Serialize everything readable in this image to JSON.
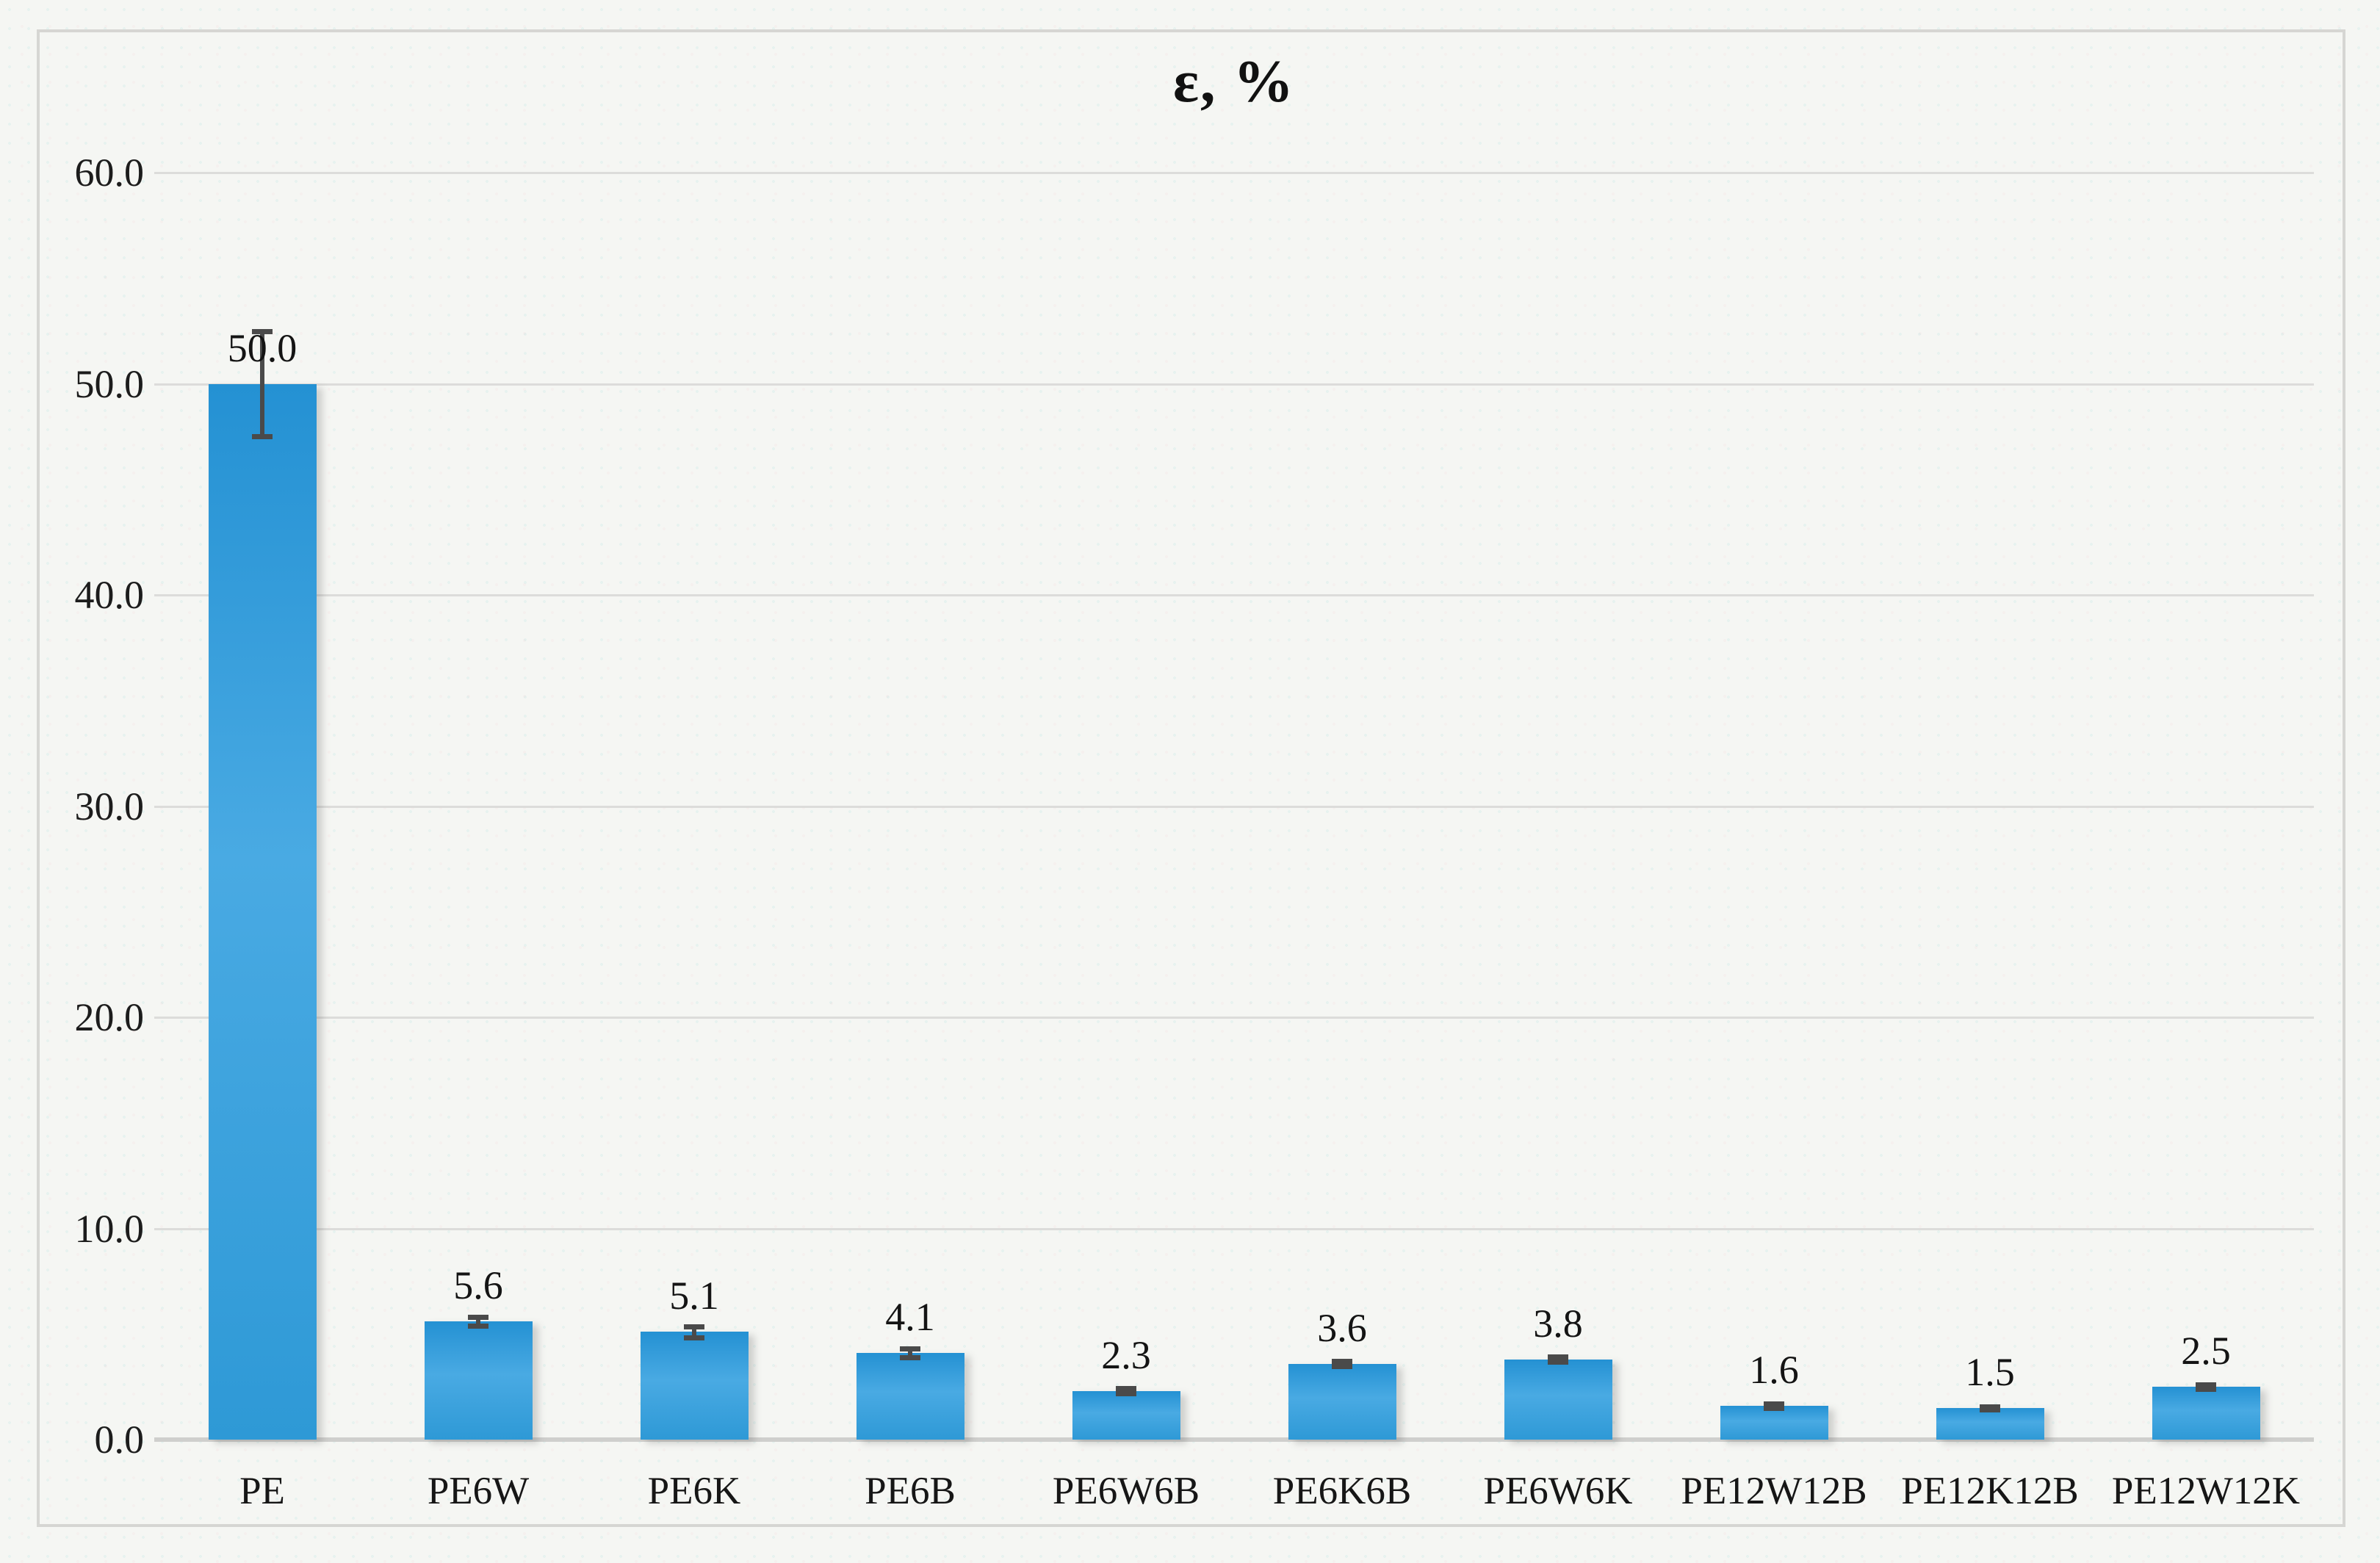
{
  "chart_data": {
    "type": "bar",
    "title": "ε, %",
    "xlabel": "",
    "ylabel": "",
    "categories": [
      "PE",
      "PE6W",
      "PE6K",
      "PE6B",
      "PE6W6B",
      "PE6K6B",
      "PE6W6K",
      "PE12W12B",
      "PE12K12B",
      "PE12W12K"
    ],
    "values": [
      50.0,
      5.6,
      5.1,
      4.1,
      2.3,
      3.6,
      3.8,
      1.6,
      1.5,
      2.5
    ],
    "value_labels": [
      "50.0",
      "5.6",
      "5.1",
      "4.1",
      "2.3",
      "3.6",
      "3.8",
      "1.6",
      "1.5",
      "2.5"
    ],
    "errors": [
      2.5,
      0.2,
      0.25,
      0.2,
      0.12,
      0.12,
      0.12,
      0.1,
      0.08,
      0.1
    ],
    "y_ticks": [
      {
        "value": 0,
        "label": "0.0"
      },
      {
        "value": 10,
        "label": "10.0"
      },
      {
        "value": 20,
        "label": "20.0"
      },
      {
        "value": 30,
        "label": "30.0"
      },
      {
        "value": 40,
        "label": "40.0"
      },
      {
        "value": 50,
        "label": "50.0"
      },
      {
        "value": 60,
        "label": "60.0"
      }
    ],
    "ylim": [
      0,
      60
    ],
    "grid": true,
    "legend": false,
    "colors": {
      "bar_top": "#2491d3",
      "bar_mid": "#49aae3",
      "bar_bottom": "#2e99d6",
      "error_bar": "#4a4a4a",
      "gridline": "#dcdcda",
      "axis_line": "#cfcfcd",
      "text": "#1c1c1c",
      "frame_border": "#d6d6d3",
      "background": "#f5f6f3"
    }
  }
}
